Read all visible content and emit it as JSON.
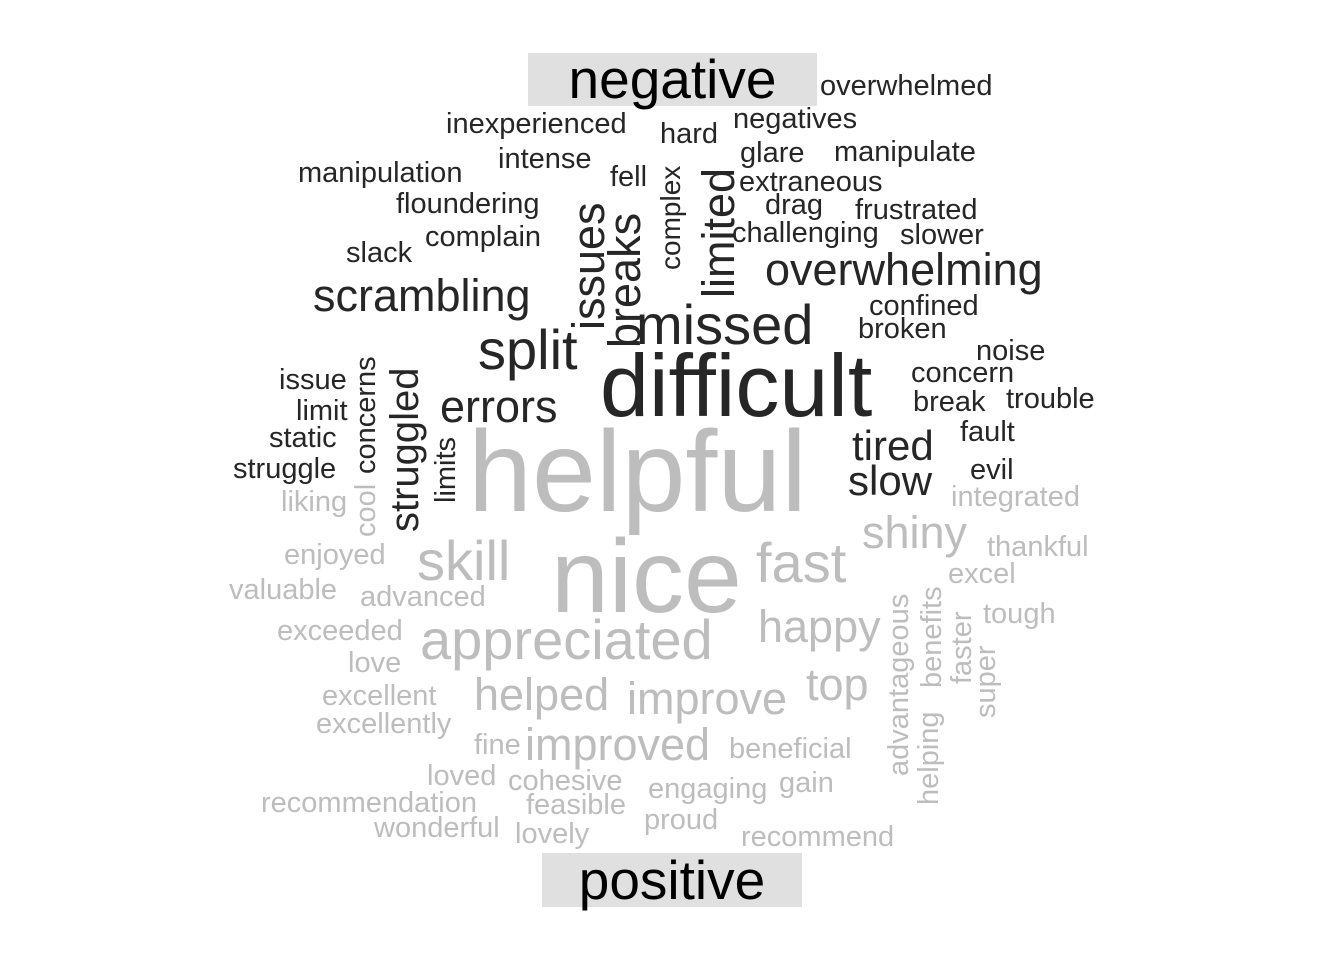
{
  "chart_data": {
    "type": "wordcloud",
    "colors": {
      "negative": "#262626",
      "positive": "#bdbdbd"
    },
    "groups": [
      {
        "name": "negative",
        "words": [
          "difficult",
          "missed",
          "split",
          "overwhelming",
          "scrambling",
          "issues",
          "breaks",
          "limited",
          "errors",
          "struggled",
          "tired",
          "slow",
          "complex",
          "negative",
          "overwhelmed",
          "inexperienced",
          "hard",
          "negatives",
          "manipulation",
          "intense",
          "fell",
          "glare",
          "manipulate",
          "extraneous",
          "floundering",
          "drag",
          "frustrated",
          "complain",
          "challenging",
          "slower",
          "slack",
          "confined",
          "broken",
          "noise",
          "concern",
          "concerns",
          "issue",
          "limit",
          "break",
          "trouble",
          "static",
          "limits",
          "fault",
          "struggle",
          "evil"
        ]
      },
      {
        "name": "positive",
        "words": [
          "helpful",
          "nice",
          "appreciated",
          "fast",
          "skill",
          "shiny",
          "happy",
          "helped",
          "improve",
          "improved",
          "top",
          "integrated",
          "liking",
          "cool",
          "thankful",
          "enjoyed",
          "excel",
          "valuable",
          "advanced",
          "exceeded",
          "tough",
          "advantageous",
          "benefits",
          "faster",
          "super",
          "love",
          "excellent",
          "excellently",
          "helping",
          "fine",
          "beneficial",
          "loved",
          "cohesive",
          "engaging",
          "gain",
          "recommendation",
          "feasible",
          "wonderful",
          "lovely",
          "proud",
          "recommend",
          "positive"
        ]
      }
    ]
  }
}
